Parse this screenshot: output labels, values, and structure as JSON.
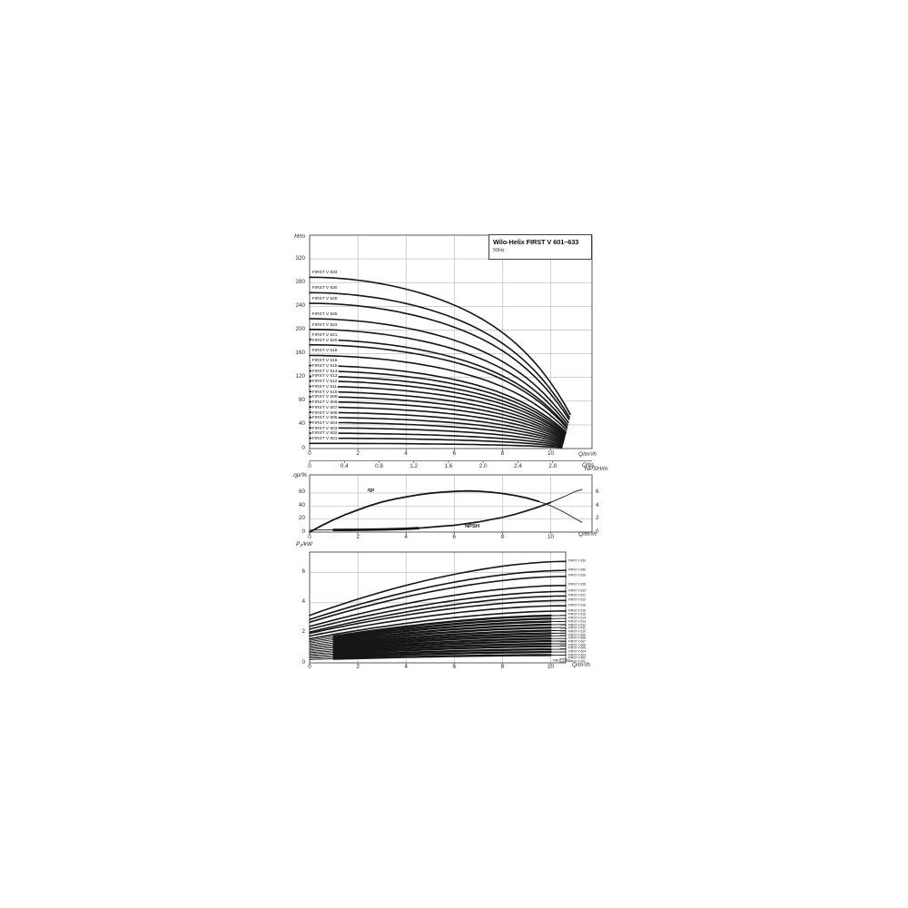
{
  "title_block": {
    "title": "Wilo-Helix FIRST V 601–633",
    "frequency": "50Hz"
  },
  "axis_labels": {
    "head": "H/m",
    "flow": "Q/m³/h",
    "flow2": "Q/l/s",
    "eff": "ηp/%",
    "npsh": "NPSH/m",
    "power": "P₂/kW"
  },
  "annotations": {
    "eff_curve": "ηp",
    "npsh_curve": "NPSH",
    "power_inline": "FIRST V 601"
  },
  "chart_data": [
    {
      "id": "head",
      "type": "line",
      "ylabel": "H/m",
      "xlabel": "Q/m³/h",
      "x2label": "Q/l/s",
      "xlim": [
        0,
        11.7
      ],
      "ylim": [
        0,
        360
      ],
      "x_ticks": [
        0,
        2,
        4,
        6,
        8,
        10
      ],
      "x2_ticks": [
        0,
        0.4,
        0.8,
        1.2,
        1.6,
        2.0,
        2.4,
        2.8
      ],
      "y_ticks": [
        0,
        40,
        80,
        120,
        160,
        200,
        240,
        280,
        320
      ],
      "grid": true,
      "legend_position": "left-along-curves",
      "curves": [
        {
          "label": "FIRST V 633",
          "h0": 289,
          "q_end": 10.81
        },
        {
          "label": "FIRST V 630",
          "h0": 263,
          "q_end": 10.78
        },
        {
          "label": "FIRST V 628",
          "h0": 245,
          "q_end": 10.76
        },
        {
          "label": "FIRST V 625",
          "h0": 219,
          "q_end": 10.73
        },
        {
          "label": "FIRST V 623",
          "h0": 201,
          "q_end": 10.7
        },
        {
          "label": "FIRST V 621",
          "h0": 184,
          "q_end": 10.68
        },
        {
          "label": "FIRST V 620",
          "h0": 175,
          "q_end": 10.67
        },
        {
          "label": "FIRST V 618",
          "h0": 157,
          "q_end": 10.65
        },
        {
          "label": "FIRST V 616",
          "h0": 140,
          "q_end": 10.63
        },
        {
          "label": "FIRST V 615",
          "h0": 131,
          "q_end": 10.62
        },
        {
          "label": "FIRST V 614",
          "h0": 122,
          "q_end": 10.6
        },
        {
          "label": "FIRST V 613",
          "h0": 114,
          "q_end": 10.59
        },
        {
          "label": "FIRST V 612",
          "h0": 105,
          "q_end": 10.58
        },
        {
          "label": "FIRST V 611",
          "h0": 96,
          "q_end": 10.57
        },
        {
          "label": "FIRST V 610",
          "h0": 87.5,
          "q_end": 10.56
        },
        {
          "label": "FIRST V 609",
          "h0": 79,
          "q_end": 10.55
        },
        {
          "label": "FIRST V 608",
          "h0": 70,
          "q_end": 10.54
        },
        {
          "label": "FIRST V 607",
          "h0": 61,
          "q_end": 10.53
        },
        {
          "label": "FIRST V 606",
          "h0": 52.5,
          "q_end": 10.52
        },
        {
          "label": "FIRST V 605",
          "h0": 44,
          "q_end": 10.51
        },
        {
          "label": "FIRST V 604",
          "h0": 35,
          "q_end": 10.49
        },
        {
          "label": "FIRST V 603",
          "h0": 26,
          "q_end": 10.48
        },
        {
          "label": "FIRST V 602",
          "h0": 17.5,
          "q_end": 10.47
        },
        {
          "label": "FIRST V 601",
          "h0": 8.8,
          "q_end": 10.46
        }
      ]
    },
    {
      "id": "eff_npsh",
      "type": "line",
      "ylabel_left": "ηp/%",
      "ylabel_right": "NPSH/m",
      "xlabel": "Q/m³/h",
      "xlim": [
        0,
        11.7
      ],
      "ylim_left": [
        0,
        88
      ],
      "ylim_right": [
        0,
        8.8
      ],
      "x_ticks": [
        0,
        2,
        4,
        6,
        8,
        10
      ],
      "y_ticks_left": [
        0,
        20,
        40,
        60
      ],
      "y_ticks_right": [
        0,
        2,
        4,
        6
      ],
      "grid": true,
      "series": [
        {
          "name": "ηp",
          "axis": "left",
          "points": [
            [
              0,
              0
            ],
            [
              0.5,
              10
            ],
            [
              1,
              19
            ],
            [
              1.5,
              27
            ],
            [
              2,
              34
            ],
            [
              2.5,
              40.5
            ],
            [
              3,
              46
            ],
            [
              3.5,
              50.5
            ],
            [
              4,
              54
            ],
            [
              4.5,
              57
            ],
            [
              5,
              59.5
            ],
            [
              5.5,
              61.3
            ],
            [
              6,
              62.4
            ],
            [
              6.5,
              63
            ],
            [
              7,
              62.6
            ],
            [
              7.5,
              61.3
            ],
            [
              8,
              59.2
            ],
            [
              8.5,
              56.2
            ],
            [
              9,
              52.3
            ],
            [
              9.5,
              47
            ],
            [
              10,
              40.5
            ],
            [
              10.5,
              31.5
            ],
            [
              11,
              21
            ],
            [
              11.3,
              15
            ]
          ]
        },
        {
          "name": "NPSH",
          "axis": "right",
          "points": [
            [
              0,
              0.3
            ],
            [
              1,
              0.33
            ],
            [
              2,
              0.35
            ],
            [
              3,
              0.4
            ],
            [
              4,
              0.5
            ],
            [
              4.5,
              0.6
            ],
            [
              5,
              0.75
            ],
            [
              5.5,
              0.9
            ],
            [
              6,
              1.05
            ],
            [
              6.5,
              1.3
            ],
            [
              7,
              1.55
            ],
            [
              7.5,
              1.9
            ],
            [
              8,
              2.25
            ],
            [
              8.5,
              2.7
            ],
            [
              9,
              3.25
            ],
            [
              9.5,
              3.85
            ],
            [
              10,
              4.55
            ],
            [
              10.5,
              5.35
            ],
            [
              11,
              6.2
            ],
            [
              11.3,
              6.55
            ]
          ]
        }
      ]
    },
    {
      "id": "power",
      "type": "line",
      "ylabel": "P₂/kW",
      "xlabel": "Q/m³/h",
      "xlim": [
        0,
        10.62
      ],
      "ylim": [
        0,
        7.4
      ],
      "x_ticks": [
        0,
        2,
        4,
        6,
        8,
        10
      ],
      "y_ticks": [
        0,
        2,
        4,
        6
      ],
      "grid": true,
      "legend_position": "right-along-curves",
      "bold_range": [
        1,
        10
      ],
      "curves": [
        {
          "label": "FIRST V 633",
          "p0": 3.16,
          "p_end": 6.75
        },
        {
          "label": "FIRST V 630",
          "p0": 2.88,
          "p_end": 6.15
        },
        {
          "label": "FIRST V 628",
          "p0": 2.7,
          "p_end": 5.75
        },
        {
          "label": "FIRST V 625",
          "p0": 2.42,
          "p_end": 5.15
        },
        {
          "label": "FIRST V 623",
          "p0": 2.24,
          "p_end": 4.75
        },
        {
          "label": "FIRST V 621",
          "p0": 2.05,
          "p_end": 4.45
        },
        {
          "label": "FIRST V 620",
          "p0": 1.96,
          "p_end": 4.15
        },
        {
          "label": "FIRST V 618",
          "p0": 1.78,
          "p_end": 3.8
        },
        {
          "label": "FIRST V 616",
          "p0": 1.6,
          "p_end": 3.45
        },
        {
          "label": "FIRST V 615",
          "p0": 1.5,
          "p_end": 3.15
        },
        {
          "label": "FIRST V 614",
          "p0": 1.41,
          "p_end": 2.95
        },
        {
          "label": "FIRST V 613",
          "p0": 1.32,
          "p_end": 2.75
        },
        {
          "label": "FIRST V 612",
          "p0": 1.22,
          "p_end": 2.55
        },
        {
          "label": "FIRST V 611",
          "p0": 1.13,
          "p_end": 2.35
        },
        {
          "label": "FIRST V 610",
          "p0": 1.04,
          "p_end": 2.15
        },
        {
          "label": "FIRST V 609",
          "p0": 0.95,
          "p_end": 1.97
        },
        {
          "label": "FIRST V 608",
          "p0": 0.86,
          "p_end": 1.8
        },
        {
          "label": "FIRST V 607",
          "p0": 0.76,
          "p_end": 1.62
        },
        {
          "label": "FIRST V 606",
          "p0": 0.67,
          "p_end": 1.45
        },
        {
          "label": "FIRST V 605",
          "p0": 0.58,
          "p_end": 1.27
        },
        {
          "label": "FIRST V 604",
          "p0": 0.49,
          "p_end": 1.1
        },
        {
          "label": "FIRST V 603",
          "p0": 0.4,
          "p_end": 0.9
        },
        {
          "label": "FIRST V 602",
          "p0": 0.31,
          "p_end": 0.72
        },
        {
          "label": "FIRST V 601",
          "p0": 0.22,
          "p_end": 0.52
        }
      ]
    }
  ]
}
